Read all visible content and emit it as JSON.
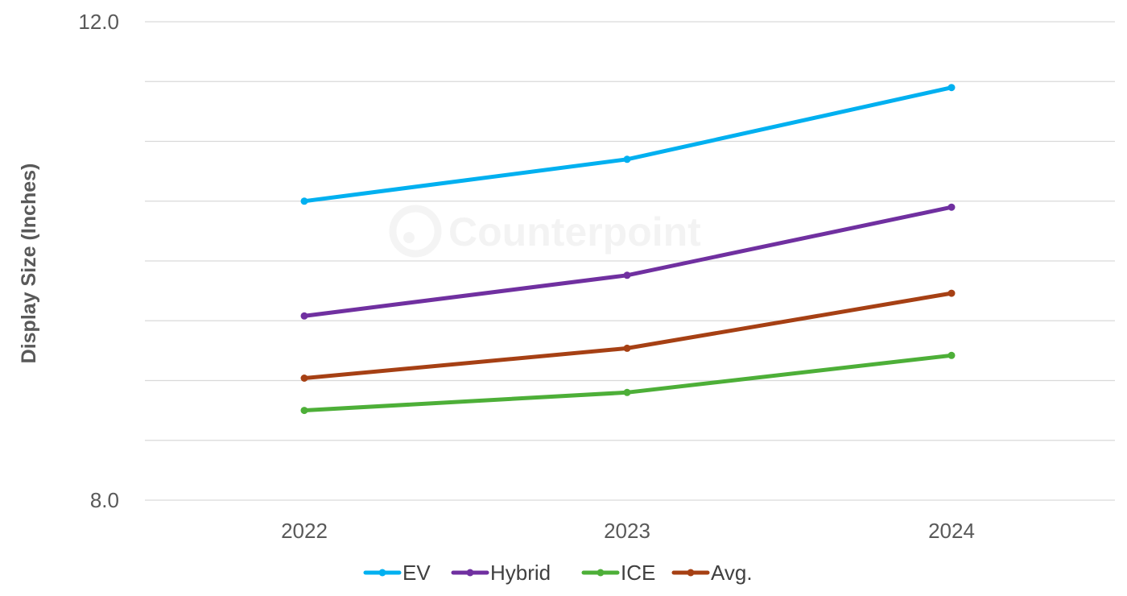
{
  "chart_data": {
    "type": "line",
    "title": "",
    "xlabel": "",
    "ylabel": "Display Size (Inches)",
    "categories": [
      "2022",
      "2023",
      "2024"
    ],
    "ylim": [
      8.0,
      12.0
    ],
    "y_tick_labels": [
      "8.0",
      "12.0"
    ],
    "grid": true,
    "legend_position": "bottom",
    "series": [
      {
        "name": "EV",
        "color": "#00b0f0",
        "values": [
          10.5,
          10.85,
          11.45
        ]
      },
      {
        "name": "Hybrid",
        "color": "#7030a0",
        "values": [
          9.54,
          9.88,
          10.45
        ]
      },
      {
        "name": "ICE",
        "color": "#4daf38",
        "values": [
          8.75,
          8.9,
          9.21
        ]
      },
      {
        "name": "Avg.",
        "color": "#a64014",
        "values": [
          9.02,
          9.27,
          9.73
        ]
      }
    ],
    "watermark": "Counterpoint"
  }
}
